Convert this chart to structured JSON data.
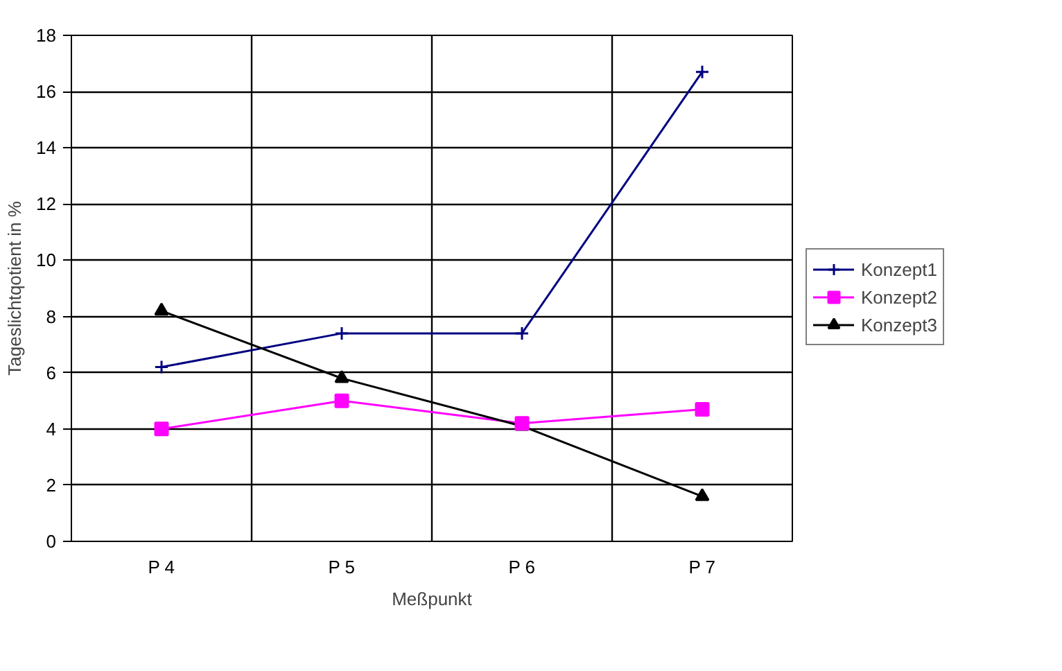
{
  "chart_data": {
    "type": "line",
    "xlabel": "Meßpunkt",
    "ylabel": "Tageslichtqotient in %",
    "categories": [
      "P 4",
      "P 5",
      "P 6",
      "P 7"
    ],
    "series": [
      {
        "name": "Konzept1",
        "color": "#000080",
        "marker": "cross",
        "values": [
          6.2,
          7.4,
          7.4,
          16.7
        ]
      },
      {
        "name": "Konzept2",
        "color": "#ff00ff",
        "marker": "square",
        "values": [
          4.0,
          5.0,
          4.2,
          4.7
        ]
      },
      {
        "name": "Konzept3",
        "color": "#000000",
        "marker": "triangle",
        "values": [
          8.2,
          5.8,
          4.1,
          1.6
        ]
      }
    ],
    "ylim": [
      0,
      18
    ],
    "yticks": [
      0,
      2,
      4,
      6,
      8,
      10,
      12,
      14,
      16,
      18
    ],
    "grid": true,
    "legend": "right",
    "line_style": "solid"
  }
}
